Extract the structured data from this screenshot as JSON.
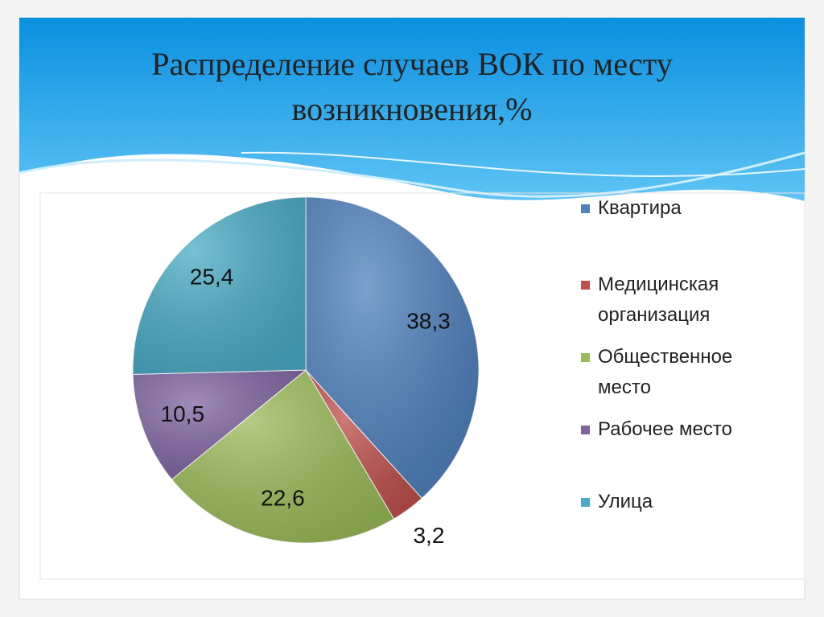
{
  "chart_data": {
    "type": "pie",
    "title": "Распределение случаев ВОК по месту возникновения,%",
    "categories": [
      "Квартира",
      "Медицинская организация",
      "Общественное место",
      "Рабочее место",
      "Улица"
    ],
    "values": [
      38.3,
      3.2,
      22.6,
      10.5,
      25.4
    ],
    "value_labels": [
      "38,3",
      "3,2",
      "22,6",
      "10,5",
      "25,4"
    ],
    "colors": [
      "#4f81bd",
      "#c0504d",
      "#9bbb59",
      "#8064a2",
      "#4bacc6"
    ],
    "legend": "right"
  }
}
